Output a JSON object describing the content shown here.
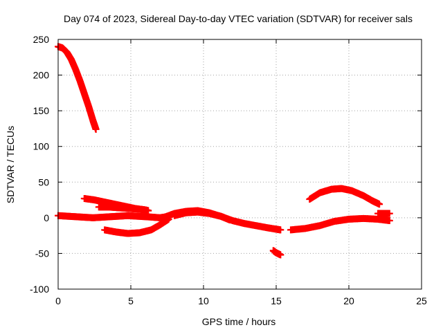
{
  "chart_data": {
    "type": "scatter",
    "title": "Day 074 of 2023, Sidereal Day-to-day VTEC variation (SDTVAR) for receiver sals",
    "xlabel": "GPS time / hours",
    "ylabel": "SDTVAR / TECUs",
    "xlim": [
      0,
      25
    ],
    "ylim": [
      -100,
      250
    ],
    "xticks": [
      0,
      5,
      10,
      15,
      20,
      25
    ],
    "xtick_labels": [
      "0",
      "5",
      "10",
      "15",
      "20",
      "25"
    ],
    "yticks": [
      -100,
      -50,
      0,
      50,
      100,
      150,
      200,
      250
    ],
    "ytick_labels": [
      "-100",
      "-50",
      "0",
      "50",
      "100",
      "150",
      "200",
      "250"
    ],
    "grid": true,
    "marker": "plus",
    "color": "#ff0000",
    "series": [
      {
        "name": "arc-early-high",
        "x": [
          0.0,
          0.3,
          0.6,
          0.9,
          1.2,
          1.5,
          1.8,
          2.1,
          2.4,
          2.6
        ],
        "y": [
          240,
          238,
          232,
          222,
          208,
          192,
          174,
          156,
          136,
          124
        ]
      },
      {
        "name": "arc-flat-near-zero",
        "x": [
          0.0,
          0.8,
          1.6,
          2.4,
          3.2,
          4.0,
          4.8,
          5.6,
          6.4,
          7.0,
          7.6
        ],
        "y": [
          3,
          2,
          1,
          0,
          1,
          2,
          3,
          2,
          1,
          0,
          2
        ]
      },
      {
        "name": "arc-upper-decline",
        "x": [
          1.8,
          2.5,
          3.2,
          3.9,
          4.6,
          5.3,
          6.0,
          6.2
        ],
        "y": [
          27,
          25,
          22,
          19,
          16,
          13,
          11,
          10
        ]
      },
      {
        "name": "arc-mid-band",
        "x": [
          2.8,
          3.5,
          4.2,
          4.9,
          5.6,
          6.0
        ],
        "y": [
          15,
          15,
          14,
          13,
          12,
          11
        ]
      },
      {
        "name": "arc-dip",
        "x": [
          3.2,
          4.0,
          4.8,
          5.6,
          6.4,
          7.0,
          7.6
        ],
        "y": [
          -17,
          -20,
          -22,
          -21,
          -17,
          -10,
          -2
        ]
      },
      {
        "name": "arc-hump-midday",
        "x": [
          7.2,
          8.0,
          8.8,
          9.6,
          10.4,
          11.2,
          11.8
        ],
        "y": [
          0,
          6,
          9,
          10,
          7,
          2,
          -3
        ]
      },
      {
        "name": "arc-mid-scatter",
        "x": [
          8.0,
          8.8,
          9.6,
          10.4,
          11.2,
          12.0,
          12.8,
          13.6,
          14.4,
          15.0,
          15.3
        ],
        "y": [
          3,
          7,
          8,
          6,
          2,
          -4,
          -8,
          -11,
          -14,
          -16,
          -17
        ]
      },
      {
        "name": "arc-late-neg",
        "x": [
          14.8,
          15.0,
          15.3
        ],
        "y": [
          -46,
          -49,
          -52
        ]
      },
      {
        "name": "arc-evening-low",
        "x": [
          16.0,
          17.0,
          18.0,
          19.0,
          20.0,
          21.0,
          22.0,
          22.8
        ],
        "y": [
          -17,
          -15,
          -11,
          -5,
          -2,
          -1,
          -2,
          -4
        ]
      },
      {
        "name": "arc-evening-hump",
        "x": [
          17.3,
          18.0,
          18.8,
          19.5,
          20.2,
          21.0,
          21.6,
          22.1
        ],
        "y": [
          26,
          35,
          40,
          41,
          38,
          31,
          24,
          19
        ]
      },
      {
        "name": "arc-end-short",
        "x": [
          22.0,
          22.4,
          22.8
        ],
        "y": [
          6,
          6,
          6
        ]
      }
    ]
  }
}
